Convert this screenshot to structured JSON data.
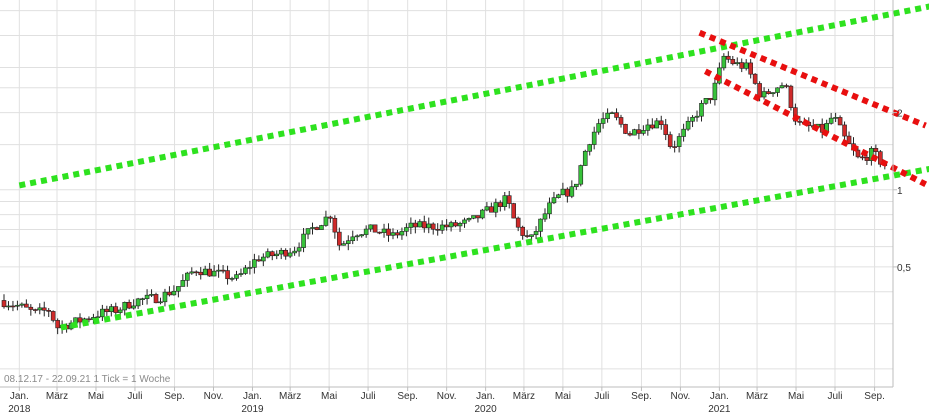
{
  "chart_data": {
    "type": "candlestick",
    "footer": "08.12.17 - 22.09.21   1 Tick = 1 Woche",
    "x_range": [
      "2017-12-08",
      "2021-09-22"
    ],
    "y_scale": "log",
    "y_ticks": [
      {
        "value": 0.5,
        "label": "0,5"
      },
      {
        "value": 1,
        "label": "1"
      },
      {
        "value": 2,
        "label": "2"
      }
    ],
    "ylim": [
      0.17,
      5.5
    ],
    "grid": true,
    "month_ticks": [
      {
        "date": "2018-01-01",
        "label": "Jan.",
        "year": "2018"
      },
      {
        "date": "2018-03-01",
        "label": "März"
      },
      {
        "date": "2018-05-01",
        "label": "Mai"
      },
      {
        "date": "2018-07-01",
        "label": "Juli"
      },
      {
        "date": "2018-09-01",
        "label": "Sep."
      },
      {
        "date": "2018-11-01",
        "label": "Nov."
      },
      {
        "date": "2019-01-01",
        "label": "Jan.",
        "year": "2019"
      },
      {
        "date": "2019-03-01",
        "label": "März"
      },
      {
        "date": "2019-05-01",
        "label": "Mai"
      },
      {
        "date": "2019-07-01",
        "label": "Juli"
      },
      {
        "date": "2019-09-01",
        "label": "Sep."
      },
      {
        "date": "2019-11-01",
        "label": "Nov."
      },
      {
        "date": "2020-01-01",
        "label": "Jan.",
        "year": "2020"
      },
      {
        "date": "2020-03-01",
        "label": "März"
      },
      {
        "date": "2020-05-01",
        "label": "Mai"
      },
      {
        "date": "2020-07-01",
        "label": "Juli"
      },
      {
        "date": "2020-09-01",
        "label": "Sep."
      },
      {
        "date": "2020-11-01",
        "label": "Nov."
      },
      {
        "date": "2021-01-01",
        "label": "Jan.",
        "year": "2021"
      },
      {
        "date": "2021-03-01",
        "label": "März"
      },
      {
        "date": "2021-05-01",
        "label": "Mai"
      },
      {
        "date": "2021-07-01",
        "label": "Juli"
      },
      {
        "date": "2021-09-01",
        "label": "Sep."
      }
    ],
    "price_path": [
      [
        "2017-12-08",
        0.37
      ],
      [
        "2018-01-10",
        0.35
      ],
      [
        "2018-02-01",
        0.33
      ],
      [
        "2018-02-25",
        0.34
      ],
      [
        "2018-03-07",
        0.29
      ],
      [
        "2018-04-15",
        0.31
      ],
      [
        "2018-05-15",
        0.33
      ],
      [
        "2018-06-10",
        0.34
      ],
      [
        "2018-07-10",
        0.37
      ],
      [
        "2018-08-15",
        0.38
      ],
      [
        "2018-09-10",
        0.41
      ],
      [
        "2018-10-10",
        0.49
      ],
      [
        "2018-11-15",
        0.47
      ],
      [
        "2018-12-15",
        0.45
      ],
      [
        "2019-01-15",
        0.54
      ],
      [
        "2019-02-15",
        0.56
      ],
      [
        "2019-03-15",
        0.59
      ],
      [
        "2019-04-10",
        0.7
      ],
      [
        "2019-05-10",
        0.8
      ],
      [
        "2019-05-25",
        0.6
      ],
      [
        "2019-06-15",
        0.68
      ],
      [
        "2019-07-15",
        0.7
      ],
      [
        "2019-08-15",
        0.66
      ],
      [
        "2019-09-15",
        0.72
      ],
      [
        "2019-10-15",
        0.72
      ],
      [
        "2019-11-15",
        0.72
      ],
      [
        "2019-12-15",
        0.75
      ],
      [
        "2020-01-15",
        0.84
      ],
      [
        "2020-02-10",
        0.92
      ],
      [
        "2020-02-25",
        0.72
      ],
      [
        "2020-03-18",
        0.63
      ],
      [
        "2020-04-15",
        0.85
      ],
      [
        "2020-05-05",
        0.96
      ],
      [
        "2020-05-25",
        1.0
      ],
      [
        "2020-06-15",
        1.5
      ],
      [
        "2020-07-05",
        1.85
      ],
      [
        "2020-07-25",
        1.95
      ],
      [
        "2020-08-20",
        1.65
      ],
      [
        "2020-09-15",
        1.8
      ],
      [
        "2020-10-10",
        1.85
      ],
      [
        "2020-10-25",
        1.45
      ],
      [
        "2020-11-15",
        1.7
      ],
      [
        "2020-12-10",
        2.1
      ],
      [
        "2020-12-28",
        2.35
      ],
      [
        "2021-01-15",
        3.3
      ],
      [
        "2021-02-01",
        3.1
      ],
      [
        "2021-02-20",
        3.0
      ],
      [
        "2021-03-15",
        2.3
      ],
      [
        "2021-04-05",
        2.5
      ],
      [
        "2021-04-20",
        2.6
      ],
      [
        "2021-05-10",
        1.8
      ],
      [
        "2021-06-01",
        1.75
      ],
      [
        "2021-06-20",
        1.7
      ],
      [
        "2021-07-05",
        1.95
      ],
      [
        "2021-07-25",
        1.55
      ],
      [
        "2021-08-15",
        1.3
      ],
      [
        "2021-09-05",
        1.4
      ],
      [
        "2021-09-22",
        1.25
      ]
    ],
    "trend_lines": [
      {
        "kind": "upper-channel",
        "color": "#2ee21f",
        "from": [
          "2018-01-01",
          1.04
        ],
        "to": [
          "2021-12-15",
          5.3
        ]
      },
      {
        "kind": "lower-channel",
        "color": "#2ee21f",
        "from": [
          "2018-03-07",
          0.29
        ],
        "to": [
          "2021-12-15",
          1.23
        ]
      },
      {
        "kind": "upper-down",
        "color": "#e80f0f",
        "from": [
          "2020-12-01",
          4.1
        ],
        "to": [
          "2021-11-20",
          1.78
        ]
      },
      {
        "kind": "lower-down",
        "color": "#e80f0f",
        "from": [
          "2020-12-10",
          2.9
        ],
        "to": [
          "2021-11-20",
          1.05
        ]
      }
    ],
    "colors": {
      "up_candle": "#37c23a",
      "down_candle": "#cf2a2a",
      "wick": "#222222",
      "grid": "#e0e0e0",
      "background": "#ffffff"
    }
  }
}
